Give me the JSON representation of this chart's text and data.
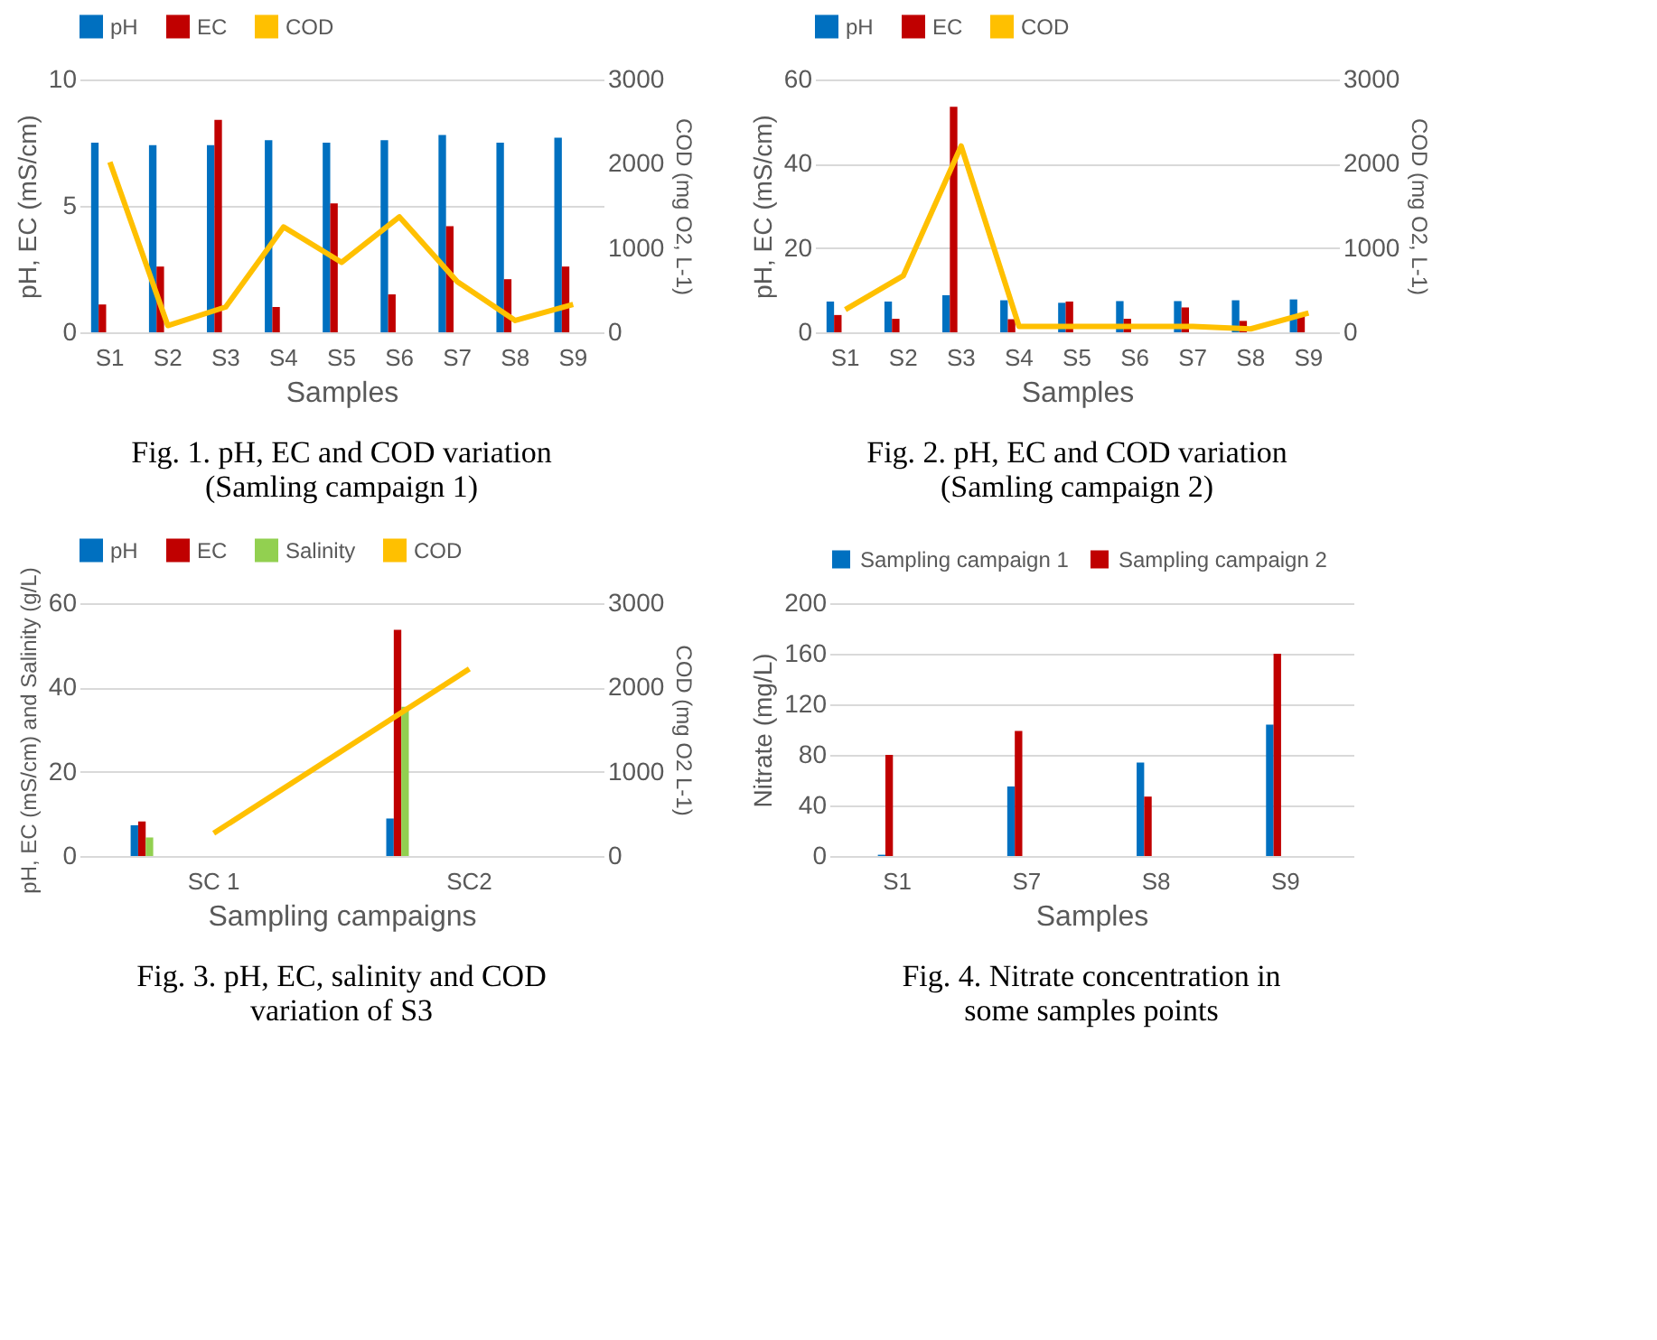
{
  "chart_data": [
    {
      "type": "bar",
      "title": "Fig. 1. pH, EC and COD variation (Samling campaign 1)",
      "xlabel": "Samples",
      "ylabel": "pH, EC (mS/cm)",
      "y2label": "COD (mg O2, L-1)",
      "categories": [
        "S1",
        "S2",
        "S3",
        "S4",
        "S5",
        "S6",
        "S7",
        "S8",
        "S9"
      ],
      "ylim": [
        0,
        10
      ],
      "yticks": [
        0,
        5,
        10
      ],
      "y2lim": [
        0,
        3000
      ],
      "y2ticks": [
        0,
        1000,
        2000,
        3000
      ],
      "grid": "y",
      "legend": "top",
      "series": [
        {
          "name": "pH",
          "color": "#0070c0",
          "values": [
            7.5,
            7.4,
            7.4,
            7.6,
            7.5,
            7.6,
            7.8,
            7.5,
            7.7
          ]
        },
        {
          "name": "EC",
          "color": "#c00000",
          "values": [
            1.1,
            2.6,
            8.4,
            1.0,
            5.1,
            1.5,
            4.2,
            2.1,
            2.6
          ]
        },
        {
          "name": "COD",
          "color": "#ffc000",
          "type": "line",
          "axis": "y2",
          "values": [
            2020,
            80,
            300,
            1250,
            830,
            1370,
            600,
            140,
            330
          ]
        }
      ]
    },
    {
      "type": "bar",
      "title": "Fig. 2. pH, EC and COD variation (Samling campaign 2)",
      "xlabel": "Samples",
      "ylabel": "pH, EC (mS/cm)",
      "y2label": "COD (mg O2, L-1)",
      "categories": [
        "S1",
        "S2",
        "S3",
        "S4",
        "S5",
        "S6",
        "S7",
        "S8",
        "S9"
      ],
      "ylim": [
        0,
        60
      ],
      "yticks": [
        0,
        20,
        40,
        60
      ],
      "y2lim": [
        0,
        3000
      ],
      "y2ticks": [
        0,
        1000,
        2000,
        3000
      ],
      "grid": "y",
      "legend": "top",
      "series": [
        {
          "name": "pH",
          "color": "#0070c0",
          "values": [
            7.3,
            7.3,
            8.8,
            7.6,
            7.0,
            7.4,
            7.4,
            7.6,
            7.8
          ]
        },
        {
          "name": "EC",
          "color": "#c00000",
          "values": [
            4.1,
            3.2,
            53.5,
            3.1,
            7.3,
            3.2,
            5.9,
            2.7,
            4.1
          ]
        },
        {
          "name": "COD",
          "color": "#ffc000",
          "type": "line",
          "axis": "y2",
          "values": [
            270,
            670,
            2210,
            70,
            70,
            70,
            70,
            40,
            230
          ]
        }
      ]
    },
    {
      "type": "bar",
      "title": "Fig. 3. pH, EC, salinity and COD variation of S3",
      "xlabel": "Sampling campaigns",
      "ylabel": "pH, EC (mS/cm) and Salinity (g/L)",
      "y2label": "COD (mg O2 L-1)",
      "categories": [
        "SC 1",
        "SC2"
      ],
      "ylim": [
        0,
        60
      ],
      "yticks": [
        0,
        20,
        40,
        60
      ],
      "y2lim": [
        0,
        3000
      ],
      "y2ticks": [
        0,
        1000,
        2000,
        3000
      ],
      "grid": "y",
      "legend": "top",
      "series": [
        {
          "name": "pH",
          "color": "#0070c0",
          "values": [
            7.3,
            8.9
          ]
        },
        {
          "name": "EC",
          "color": "#c00000",
          "values": [
            8.2,
            53.7
          ]
        },
        {
          "name": "Salinity",
          "color": "#92d050",
          "values": [
            4.4,
            35.4
          ]
        },
        {
          "name": "COD",
          "color": "#ffc000",
          "type": "line",
          "axis": "y2",
          "values": [
            270,
            2220
          ]
        }
      ]
    },
    {
      "type": "bar",
      "title": "Fig. 4. Nitrate concentration in some samples points",
      "xlabel": "Samples",
      "ylabel": "Nitrate (mg/L)",
      "categories": [
        "S1",
        "S7",
        "S8",
        "S9"
      ],
      "ylim": [
        0,
        200
      ],
      "yticks": [
        0,
        40,
        80,
        120,
        160,
        200
      ],
      "grid": "y",
      "legend": "top",
      "series": [
        {
          "name": "Sampling campaign 1",
          "color": "#0070c0",
          "values": [
            1,
            55,
            74,
            104
          ]
        },
        {
          "name": "Sampling campaign 2",
          "color": "#c00000",
          "values": [
            80,
            99,
            47,
            160
          ]
        }
      ]
    }
  ]
}
